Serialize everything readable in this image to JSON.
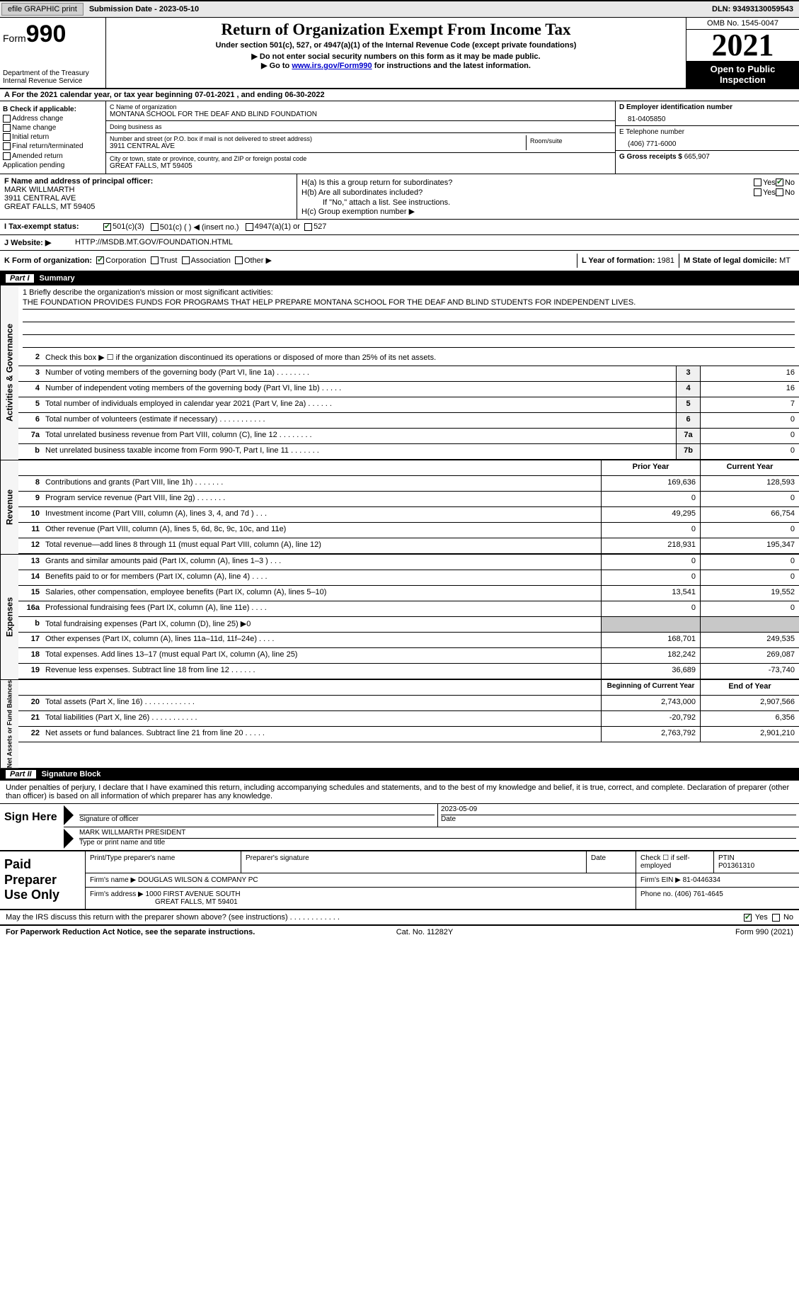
{
  "topbar": {
    "efile": "efile GRAPHIC print",
    "submission": "Submission Date - 2023-05-10",
    "dln": "DLN: 93493130059543"
  },
  "header": {
    "form_label": "Form",
    "form_num": "990",
    "dept": "Department of the Treasury Internal Revenue Service",
    "title": "Return of Organization Exempt From Income Tax",
    "subtitle": "Under section 501(c), 527, or 4947(a)(1) of the Internal Revenue Code (except private foundations)",
    "warn": "Do not enter social security numbers on this form as it may be made public.",
    "goto_pre": "Go to ",
    "goto_link": "www.irs.gov/Form990",
    "goto_post": " for instructions and the latest information.",
    "omb": "OMB No. 1545-0047",
    "year": "2021",
    "open": "Open to Public Inspection"
  },
  "rowA": "A For the 2021 calendar year, or tax year beginning 07-01-2021    , and ending 06-30-2022",
  "colB": {
    "title": "B Check if applicable:",
    "addr": "Address change",
    "name": "Name change",
    "init": "Initial return",
    "final": "Final return/terminated",
    "amend": "Amended return",
    "app": "Application pending"
  },
  "colC": {
    "name_lbl": "C Name of organization",
    "name": "MONTANA SCHOOL FOR THE DEAF AND BLIND FOUNDATION",
    "dba_lbl": "Doing business as",
    "dba": "",
    "street_lbl": "Number and street (or P.O. box if mail is not delivered to street address)",
    "street": "3911 CENTRAL AVE",
    "room_lbl": "Room/suite",
    "city_lbl": "City or town, state or province, country, and ZIP or foreign postal code",
    "city": "GREAT FALLS, MT  59405"
  },
  "colDE": {
    "d_lbl": "D Employer identification number",
    "ein": "81-0405850",
    "e_lbl": "E Telephone number",
    "phone": "(406) 771-6000",
    "g_lbl": "G Gross receipts $ ",
    "gross": "665,907"
  },
  "rowF": {
    "lbl": "F Name and address of principal officer:",
    "name": "MARK WILLMARTH",
    "street": "3911 CENTRAL AVE",
    "city": "GREAT FALLS, MT  59405"
  },
  "rowH": {
    "a_lbl": "H(a)  Is this a group return for subordinates?",
    "b_lbl": "H(b)  Are all subordinates included?",
    "b_note": "If \"No,\" attach a list. See instructions.",
    "c_lbl": "H(c)  Group exemption number ▶",
    "yes": "Yes",
    "no": "No"
  },
  "rowI": {
    "lbl": "I    Tax-exempt status:",
    "c3": "501(c)(3)",
    "c": "501(c) (  ) ◀ (insert no.)",
    "a4947": "4947(a)(1) or",
    "s527": "527"
  },
  "rowJ": {
    "lbl": "J   Website: ▶",
    "url": "HTTP://MSDB.MT.GOV/FOUNDATION.HTML"
  },
  "rowK": {
    "lbl": "K Form of organization:",
    "corp": "Corporation",
    "trust": "Trust",
    "assoc": "Association",
    "other": "Other ▶",
    "l_lbl": "L Year of formation: ",
    "l_val": "1981",
    "m_lbl": "M State of legal domicile: ",
    "m_val": "MT"
  },
  "part1": {
    "num": "Part I",
    "title": "Summary"
  },
  "mission": {
    "lbl": "1   Briefly describe the organization's mission or most significant activities:",
    "text": "THE FOUNDATION PROVIDES FUNDS FOR PROGRAMS THAT HELP PREPARE MONTANA SCHOOL FOR THE DEAF AND BLIND STUDENTS FOR INDEPENDENT LIVES."
  },
  "line2": "Check this box ▶ ☐  if the organization discontinued its operations or disposed of more than 25% of its net assets.",
  "lines_ag": [
    {
      "n": "3",
      "d": "Number of voting members of the governing body (Part VI, line 1a)   .    .    .    .    .    .    .    .",
      "b": "3",
      "v": "16"
    },
    {
      "n": "4",
      "d": "Number of independent voting members of the governing body (Part VI, line 1b)   .    .    .    .    .",
      "b": "4",
      "v": "16"
    },
    {
      "n": "5",
      "d": "Total number of individuals employed in calendar year 2021 (Part V, line 2a)   .    .    .    .    .    .",
      "b": "5",
      "v": "7"
    },
    {
      "n": "6",
      "d": "Total number of volunteers (estimate if necessary)     .    .    .    .    .    .    .    .    .    .    .",
      "b": "6",
      "v": "0"
    },
    {
      "n": "7a",
      "d": "Total unrelated business revenue from Part VIII, column (C), line 12    .    .    .    .    .    .    .    .",
      "b": "7a",
      "v": "0"
    },
    {
      "n": "b",
      "d": "Net unrelated business taxable income from Form 990-T, Part I, line 11   .    .    .    .    .    .    .",
      "b": "7b",
      "v": "0"
    }
  ],
  "colhdr": {
    "py": "Prior Year",
    "cy": "Current Year"
  },
  "lines_rev": [
    {
      "n": "8",
      "d": "Contributions and grants (Part VIII, line 1h)    .    .    .    .    .    .    .",
      "py": "169,636",
      "cy": "128,593"
    },
    {
      "n": "9",
      "d": "Program service revenue (Part VIII, line 2g)    .    .    .    .    .    .    .",
      "py": "0",
      "cy": "0"
    },
    {
      "n": "10",
      "d": "Investment income (Part VIII, column (A), lines 3, 4, and 7d )    .    .    .",
      "py": "49,295",
      "cy": "66,754"
    },
    {
      "n": "11",
      "d": "Other revenue (Part VIII, column (A), lines 5, 6d, 8c, 9c, 10c, and 11e)",
      "py": "0",
      "cy": "0"
    },
    {
      "n": "12",
      "d": "Total revenue—add lines 8 through 11 (must equal Part VIII, column (A), line 12)",
      "py": "218,931",
      "cy": "195,347"
    }
  ],
  "lines_exp": [
    {
      "n": "13",
      "d": "Grants and similar amounts paid (Part IX, column (A), lines 1–3 )    .    .    .",
      "py": "0",
      "cy": "0"
    },
    {
      "n": "14",
      "d": "Benefits paid to or for members (Part IX, column (A), line 4)   .    .    .    .",
      "py": "0",
      "cy": "0"
    },
    {
      "n": "15",
      "d": "Salaries, other compensation, employee benefits (Part IX, column (A), lines 5–10)",
      "py": "13,541",
      "cy": "19,552"
    },
    {
      "n": "16a",
      "d": "Professional fundraising fees (Part IX, column (A), line 11e)    .    .    .    .",
      "py": "0",
      "cy": "0"
    },
    {
      "n": "b",
      "d": "Total fundraising expenses (Part IX, column (D), line 25) ▶0",
      "py": "",
      "cy": "",
      "shade": true
    },
    {
      "n": "17",
      "d": "Other expenses (Part IX, column (A), lines 11a–11d, 11f–24e)    .    .    .    .",
      "py": "168,701",
      "cy": "249,535"
    },
    {
      "n": "18",
      "d": "Total expenses. Add lines 13–17 (must equal Part IX, column (A), line 25)",
      "py": "182,242",
      "cy": "269,087"
    },
    {
      "n": "19",
      "d": "Revenue less expenses. Subtract line 18 from line 12   .    .    .    .    .    .",
      "py": "36,689",
      "cy": "-73,740"
    }
  ],
  "colhdr2": {
    "py": "Beginning of Current Year",
    "cy": "End of Year"
  },
  "lines_na": [
    {
      "n": "20",
      "d": "Total assets (Part X, line 16)   .    .    .    .    .    .    .    .    .    .    .    .",
      "py": "2,743,000",
      "cy": "2,907,566"
    },
    {
      "n": "21",
      "d": "Total liabilities (Part X, line 26)   .    .    .    .    .    .    .    .    .    .    .",
      "py": "-20,792",
      "cy": "6,356"
    },
    {
      "n": "22",
      "d": "Net assets or fund balances. Subtract line 21 from line 20   .    .    .    .    .",
      "py": "2,763,792",
      "cy": "2,901,210"
    }
  ],
  "vtabs": {
    "ag": "Activities & Governance",
    "rev": "Revenue",
    "exp": "Expenses",
    "na": "Net Assets or Fund Balances"
  },
  "part2": {
    "num": "Part II",
    "title": "Signature Block"
  },
  "sig": {
    "intro": "Under penalties of perjury, I declare that I have examined this return, including accompanying schedules and statements, and to the best of my knowledge and belief, it is true, correct, and complete. Declaration of preparer (other than officer) is based on all information of which preparer has any knowledge.",
    "here": "Sign Here",
    "sig_lbl": "Signature of officer",
    "date": "2023-05-09",
    "date_lbl": "Date",
    "name": "MARK WILLMARTH  PRESIDENT",
    "name_lbl": "Type or print name and title"
  },
  "prep": {
    "title": "Paid Preparer Use Only",
    "name_lbl": "Print/Type preparer's name",
    "sig_lbl": "Preparer's signature",
    "date_lbl": "Date",
    "check_lbl": "Check ☐ if self-employed",
    "ptin_lbl": "PTIN",
    "ptin": "P01361310",
    "firm_name_lbl": "Firm's name   ▶ ",
    "firm_name": "DOUGLAS WILSON & COMPANY PC",
    "firm_ein_lbl": "Firm's EIN ▶ ",
    "firm_ein": "81-0446334",
    "firm_addr_lbl": "Firm's address ▶ ",
    "firm_addr1": "1000 FIRST AVENUE SOUTH",
    "firm_addr2": "GREAT FALLS, MT  59401",
    "phone_lbl": "Phone no. ",
    "phone": "(406) 761-4645"
  },
  "discuss": {
    "q": "May the IRS discuss this return with the preparer shown above? (see instructions)    .    .    .    .    .    .    .    .    .    .    .    .",
    "yes": "Yes",
    "no": "No"
  },
  "footer": {
    "l": "For Paperwork Reduction Act Notice, see the separate instructions.",
    "c": "Cat. No. 11282Y",
    "r": "Form 990 (2021)"
  }
}
